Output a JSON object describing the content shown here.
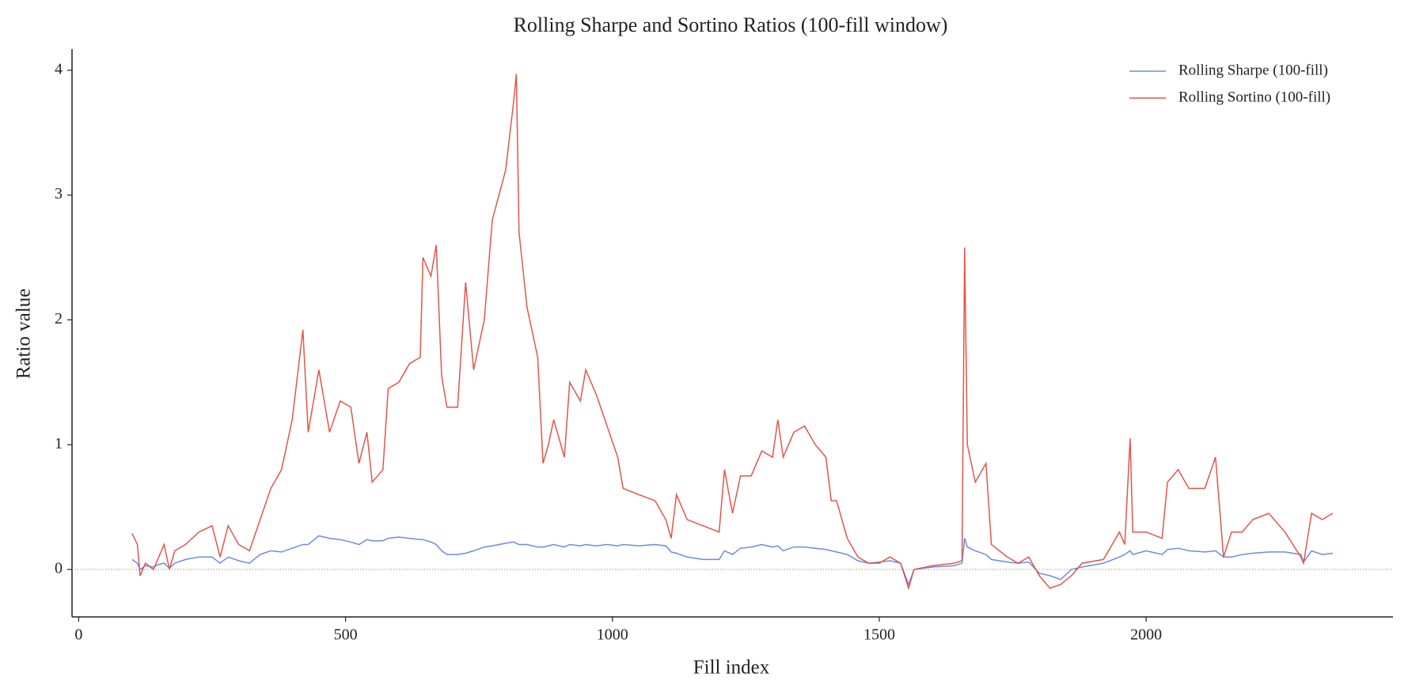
{
  "chart_data": {
    "type": "line",
    "title": "Rolling Sharpe and Sortino Ratios (100-fill window)",
    "xlabel": "Fill index",
    "ylabel": "Ratio value",
    "x": [
      100,
      110,
      115,
      125,
      140,
      150,
      160,
      170,
      180,
      200,
      225,
      250,
      265,
      280,
      300,
      320,
      340,
      360,
      380,
      400,
      420,
      430,
      450,
      470,
      490,
      510,
      525,
      540,
      550,
      570,
      580,
      600,
      620,
      640,
      645,
      660,
      670,
      680,
      690,
      710,
      725,
      740,
      760,
      775,
      800,
      815,
      820,
      825,
      840,
      860,
      870,
      880,
      890,
      910,
      920,
      940,
      950,
      970,
      990,
      1010,
      1020,
      1050,
      1080,
      1100,
      1110,
      1120,
      1140,
      1170,
      1200,
      1210,
      1225,
      1240,
      1260,
      1280,
      1300,
      1310,
      1320,
      1340,
      1360,
      1380,
      1400,
      1410,
      1420,
      1440,
      1460,
      1480,
      1500,
      1520,
      1540,
      1555,
      1565,
      1600,
      1640,
      1655,
      1660,
      1665,
      1680,
      1700,
      1710,
      1740,
      1760,
      1780,
      1800,
      1820,
      1840,
      1860,
      1880,
      1920,
      1950,
      1960,
      1970,
      1975,
      2000,
      2030,
      2040,
      2060,
      2080,
      2110,
      2130,
      2145,
      2160,
      2180,
      2200,
      2230,
      2260,
      2290,
      2295,
      2310,
      2330,
      2350
    ],
    "series": [
      {
        "name": "Rolling Sharpe (100-fill)",
        "color": "#6f8ae4",
        "values": [
          0.08,
          0.05,
          0,
          0.03,
          0.02,
          0.04,
          0.05,
          0.01,
          0.05,
          0.08,
          0.1,
          0.1,
          0.05,
          0.1,
          0.07,
          0.05,
          0.12,
          0.15,
          0.14,
          0.17,
          0.2,
          0.2,
          0.27,
          0.25,
          0.24,
          0.22,
          0.2,
          0.24,
          0.23,
          0.23,
          0.25,
          0.26,
          0.25,
          0.24,
          0.24,
          0.22,
          0.2,
          0.15,
          0.12,
          0.12,
          0.13,
          0.15,
          0.18,
          0.19,
          0.21,
          0.22,
          0.21,
          0.2,
          0.2,
          0.18,
          0.18,
          0.19,
          0.2,
          0.18,
          0.2,
          0.19,
          0.2,
          0.19,
          0.2,
          0.19,
          0.2,
          0.19,
          0.2,
          0.19,
          0.14,
          0.13,
          0.1,
          0.08,
          0.08,
          0.15,
          0.12,
          0.17,
          0.18,
          0.2,
          0.18,
          0.19,
          0.15,
          0.18,
          0.18,
          0.17,
          0.16,
          0.15,
          0.14,
          0.12,
          0.07,
          0.05,
          0.06,
          0.07,
          0.05,
          -0.12,
          0,
          0.02,
          0.03,
          0.05,
          0.25,
          0.18,
          0.15,
          0.12,
          0.08,
          0.06,
          0.05,
          0.06,
          -0.03,
          -0.05,
          -0.08,
          0,
          0.02,
          0.05,
          0.1,
          0.12,
          0.15,
          0.12,
          0.15,
          0.12,
          0.16,
          0.17,
          0.15,
          0.14,
          0.15,
          0.1,
          0.1,
          0.12,
          0.13,
          0.14,
          0.14,
          0.12,
          0.06,
          0.15,
          0.12,
          0.13
        ]
      },
      {
        "name": "Rolling Sortino (100-fill)",
        "color": "#e2564a",
        "values": [
          0.29,
          0.2,
          -0.05,
          0.05,
          0,
          0.1,
          0.2,
          0,
          0.15,
          0.2,
          0.3,
          0.35,
          0.1,
          0.35,
          0.2,
          0.15,
          0.4,
          0.65,
          0.8,
          1.2,
          1.92,
          1.1,
          1.6,
          1.1,
          1.35,
          1.3,
          0.85,
          1.1,
          0.7,
          0.8,
          1.45,
          1.5,
          1.65,
          1.7,
          2.5,
          2.35,
          2.6,
          1.55,
          1.3,
          1.3,
          2.3,
          1.6,
          2,
          2.8,
          3.2,
          3.75,
          3.97,
          2.7,
          2.1,
          1.7,
          0.85,
          1,
          1.2,
          0.9,
          1.5,
          1.35,
          1.6,
          1.4,
          1.15,
          0.9,
          0.65,
          0.6,
          0.55,
          0.4,
          0.25,
          0.6,
          0.4,
          0.35,
          0.3,
          0.8,
          0.45,
          0.75,
          0.75,
          0.95,
          0.9,
          1.2,
          0.9,
          1.1,
          1.15,
          1,
          0.9,
          0.55,
          0.55,
          0.25,
          0.1,
          0.05,
          0.05,
          0.1,
          0.05,
          -0.15,
          0,
          0.03,
          0.05,
          0.07,
          2.58,
          1,
          0.7,
          0.85,
          0.2,
          0.1,
          0.05,
          0.1,
          -0.05,
          -0.15,
          -0.12,
          -0.05,
          0.05,
          0.08,
          0.3,
          0.2,
          1.05,
          0.3,
          0.3,
          0.25,
          0.7,
          0.8,
          0.65,
          0.65,
          0.9,
          0.1,
          0.3,
          0.3,
          0.4,
          0.45,
          0.3,
          0.1,
          0.05,
          0.45,
          0.4,
          0.45
        ]
      }
    ],
    "xlim": [
      -12.5,
      2462.5
    ],
    "ylim": [
      -0.38,
      4.17
    ],
    "xticks": [
      0,
      500,
      1000,
      1500,
      2000
    ],
    "yticks": [
      0,
      1,
      2,
      3,
      4
    ],
    "hline": 0,
    "legend": "upper right",
    "grid": false
  }
}
